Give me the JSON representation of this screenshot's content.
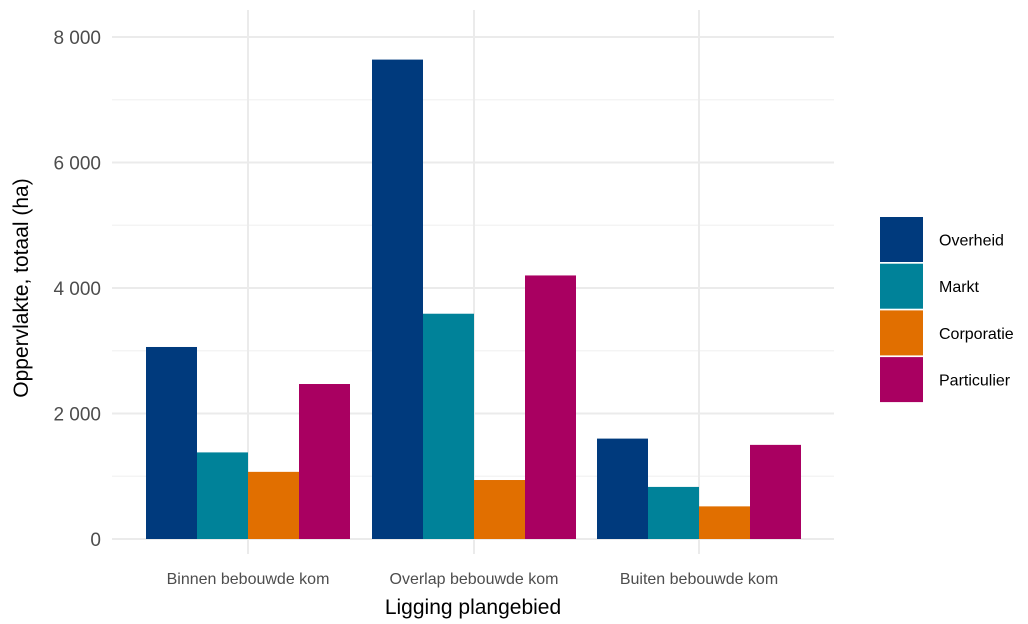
{
  "chart_data": {
    "type": "bar",
    "title": "",
    "xlabel": "Ligging plangebied",
    "ylabel": "Oppervlakte, totaal (ha)",
    "ylim": [
      0,
      8000
    ],
    "yticks": [
      0,
      2000,
      4000,
      6000,
      8000
    ],
    "ytick_labels": [
      "0",
      "2 000",
      "4 000",
      "6 000",
      "8 000"
    ],
    "grid": true,
    "legend_position": "right",
    "categories": [
      "Binnen bebouwde kom",
      "Overlap bebouwde kom",
      "Buiten bebouwde kom"
    ],
    "series": [
      {
        "name": "Overheid",
        "color": "#003a7d",
        "values": [
          3060,
          7640,
          1600
        ]
      },
      {
        "name": "Markt",
        "color": "#008299",
        "values": [
          1380,
          3590,
          830
        ]
      },
      {
        "name": "Corporatie",
        "color": "#e16f00",
        "values": [
          1070,
          940,
          520
        ]
      },
      {
        "name": "Particulier",
        "color": "#a90061",
        "values": [
          2470,
          4200,
          1500
        ]
      }
    ]
  }
}
